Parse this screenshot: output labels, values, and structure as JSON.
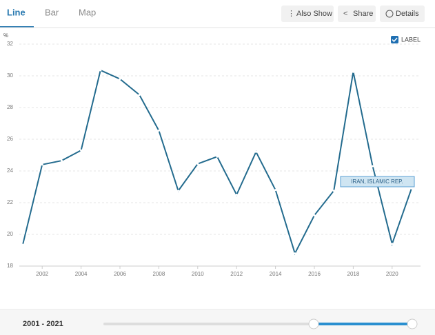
{
  "ui": {
    "tabs": [
      "Line",
      "Bar",
      "Map"
    ],
    "buttons": [
      "Also Show",
      "Share",
      "Details"
    ],
    "label_toggle": "LABEL",
    "range_label": "2001 - 2021"
  },
  "chart_data": {
    "type": "line",
    "y_label": "%",
    "x": [
      2001,
      2002,
      2003,
      2004,
      2005,
      2006,
      2007,
      2008,
      2009,
      2010,
      2011,
      2012,
      2013,
      2014,
      2015,
      2016,
      2017,
      2018,
      2019,
      2020,
      2021
    ],
    "series": [
      {
        "name": "IRAN, ISLAMIC REP.",
        "color": "#236b8e",
        "values": [
          19.35,
          24.4,
          24.65,
          25.3,
          30.35,
          29.8,
          28.8,
          26.55,
          22.75,
          24.45,
          24.9,
          22.5,
          25.2,
          22.8,
          18.8,
          21.2,
          22.75,
          30.25,
          24.3,
          19.4,
          22.9
        ]
      }
    ],
    "xlim": [
      2001,
      2021
    ],
    "xticks": [
      2002,
      2004,
      2006,
      2008,
      2010,
      2012,
      2014,
      2016,
      2018,
      2020
    ],
    "ylim": [
      18,
      32
    ],
    "yticks": [
      18,
      20,
      22,
      24,
      26,
      28,
      30,
      32
    ],
    "grid": true
  }
}
